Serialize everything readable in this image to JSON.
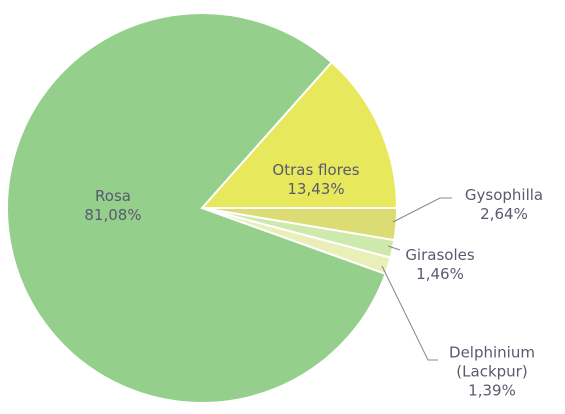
{
  "chart_data": {
    "type": "pie",
    "categories": [
      "Otras flores",
      "Gysophilla",
      "Girasoles",
      "Delphinium (Lackpur)",
      "Rosa"
    ],
    "values": [
      13.43,
      2.64,
      1.46,
      1.39,
      81.08
    ],
    "value_labels": [
      "13,43%",
      "2,64%",
      "1,46%",
      "1,39%",
      "81,08%"
    ],
    "colors": [
      "#e8e85c",
      "#dcdc74",
      "#cde9ab",
      "#e9efb6",
      "#94cf8b"
    ]
  }
}
